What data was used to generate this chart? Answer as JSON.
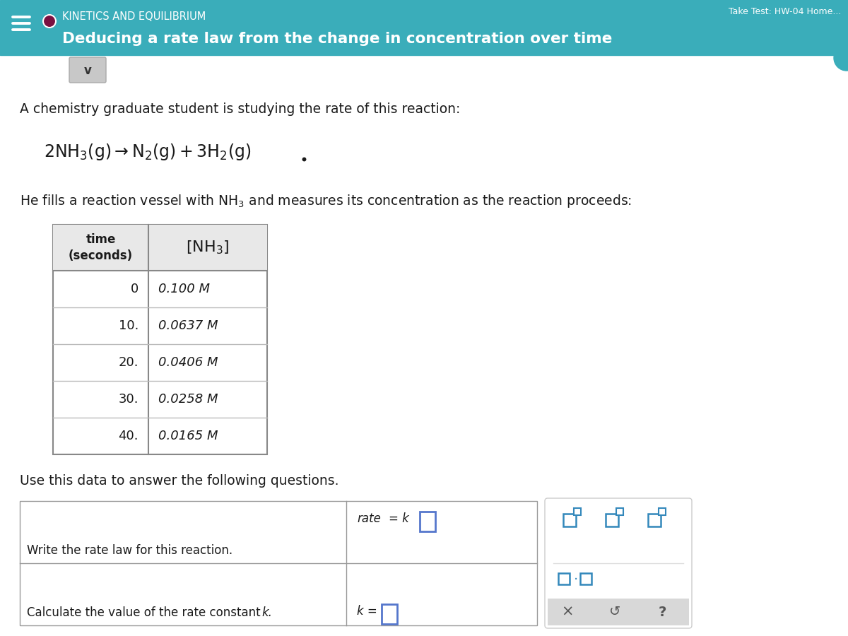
{
  "header_color": "#3aadba",
  "header_text_color": "#ffffff",
  "header_label": "KINETICS AND EQUILIBRIUM",
  "header_subtitle": "Deducing a rate law from the change in concentration over time",
  "header_top_right": "Take Test: HW-04 Home...",
  "body_bg": "#ffffff",
  "content_bg": "#f2f2f2",
  "intro_text": "A chemistry graduate student is studying the rate of this reaction:",
  "vessel_text_pre": "He fills a reaction vessel with NH",
  "vessel_text_post": " and measures its concentration as the reaction proceeds:",
  "table_data": [
    [
      "0",
      "0.100 M"
    ],
    [
      "10.",
      "0.0637 M"
    ],
    [
      "20.",
      "0.0406 M"
    ],
    [
      "30.",
      "0.0258 M"
    ],
    [
      "40.",
      "0.0165 M"
    ]
  ],
  "follow_up": "Use this data to answer the following questions.",
  "q1_label": "Write the rate law for this reaction.",
  "q2_label": "Calculate the value of the rate constant k.",
  "circle_color": "#7a1040"
}
